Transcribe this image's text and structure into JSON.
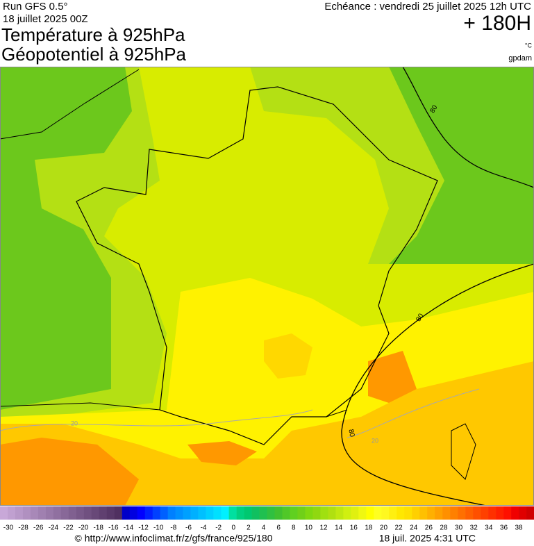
{
  "header": {
    "run": "Run GFS 0.5°",
    "date": "18 juillet 2025 00Z",
    "title_1": "Température à 925hPa",
    "title_2": "Géopotentiel à 925hPa",
    "valid": "Echéance : vendredi 25 juillet 2025 12h UTC",
    "lead": "+ 180H",
    "unit_temp": "°C",
    "unit_geo": "gpdam"
  },
  "map": {
    "contour_labels": [
      "80",
      "80",
      "80",
      "20",
      "20"
    ]
  },
  "scale": {
    "ticks": [
      -30,
      -28,
      -26,
      -24,
      -22,
      -20,
      -18,
      -16,
      -14,
      -12,
      -10,
      -8,
      -6,
      -4,
      -2,
      0,
      2,
      4,
      6,
      8,
      10,
      12,
      14,
      16,
      18,
      20,
      22,
      24,
      26,
      28,
      30,
      32,
      34,
      36,
      38
    ],
    "colors": [
      "#c8a8d8",
      "#c0a0d0",
      "#b898c8",
      "#b090c0",
      "#a888b8",
      "#a080b0",
      "#9878a8",
      "#9070a0",
      "#886898",
      "#806090",
      "#785888",
      "#705080",
      "#684878",
      "#604070",
      "#583868",
      "#503060",
      "#0000c8",
      "#0000e0",
      "#0000ff",
      "#0020ff",
      "#0040ff",
      "#0060ff",
      "#0080ff",
      "#0090ff",
      "#00a0ff",
      "#00b0ff",
      "#00c0ff",
      "#00d0ff",
      "#00e0ff",
      "#00f0ff",
      "#00e0a0",
      "#00d080",
      "#00c870",
      "#10c060",
      "#20c050",
      "#30c040",
      "#40c030",
      "#50c828",
      "#60d020",
      "#70d018",
      "#80d810",
      "#90d810",
      "#a0e010",
      "#b0e010",
      "#c0e810",
      "#d0f010",
      "#e0f010",
      "#f0f810",
      "#ffff00",
      "#ffff20",
      "#fff820",
      "#fff010",
      "#ffe800",
      "#ffe000",
      "#ffd000",
      "#ffc000",
      "#ffb000",
      "#ffa000",
      "#ff9000",
      "#ff8000",
      "#ff7000",
      "#ff6000",
      "#ff5000",
      "#ff4000",
      "#ff3000",
      "#ff2000",
      "#ff1000",
      "#f00000",
      "#e00000",
      "#d00000"
    ]
  },
  "footer": {
    "source": "© http://www.infoclimat.fr/z/gfs/france/925/180",
    "generated": "18 juil. 2025  4:31 UTC"
  }
}
